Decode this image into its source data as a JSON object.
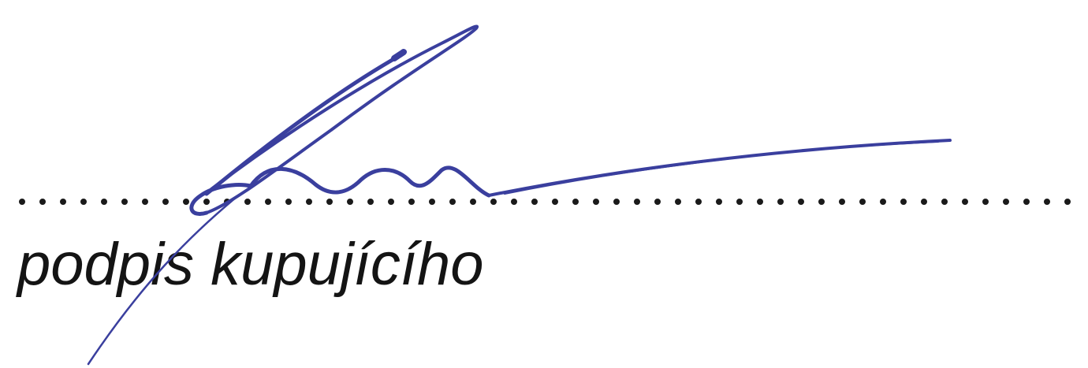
{
  "caption": "podpis kupujícího",
  "colors": {
    "ink": "#141414",
    "signature": "#3a3f9e",
    "dots": "#1a1a1a"
  }
}
